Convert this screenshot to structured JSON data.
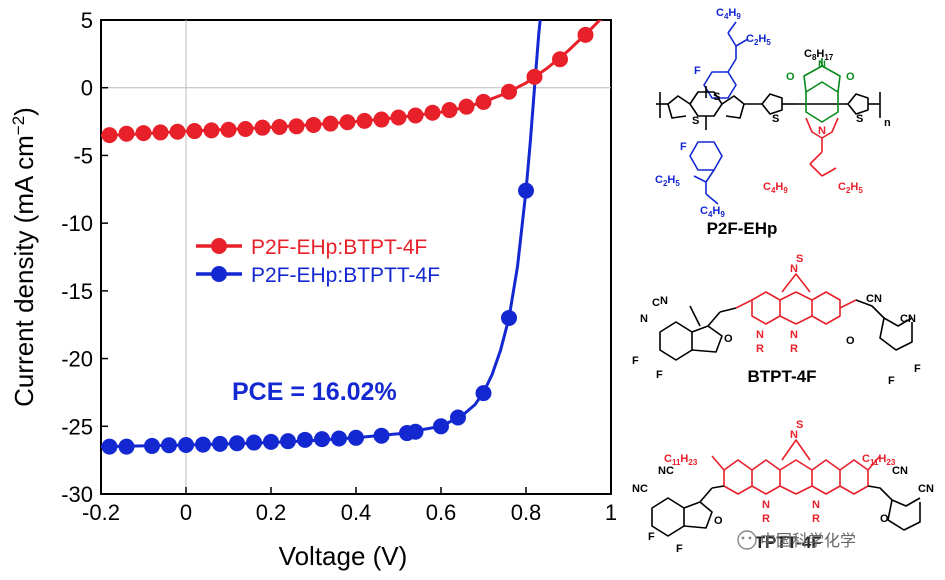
{
  "chart_data": {
    "type": "line",
    "title": "",
    "xlabel": "Voltage (V)",
    "ylabel": "Current density (mA cm",
    "ylabel_sup": "−2",
    "ylabel_close": ")",
    "xlim": [
      -0.2,
      1.0
    ],
    "ylim": [
      -30,
      5
    ],
    "x_ticks": [
      -0.2,
      0,
      0.2,
      0.4,
      0.6,
      0.8,
      1.0
    ],
    "x_tick_labels": [
      "-0.2",
      "0",
      "0.2",
      "0.4",
      "0.6",
      "0.8",
      "1"
    ],
    "y_ticks": [
      5,
      0,
      -5,
      -10,
      -15,
      -20,
      -25,
      -30
    ],
    "y_tick_labels": [
      "5",
      "0",
      "-5",
      "-10",
      "-15",
      "-20",
      "-25",
      "-30"
    ],
    "legend_position": "center-left",
    "series": [
      {
        "name": "P2F-EHp:BTPT-4F",
        "color": "#e8202a",
        "curve": [
          [
            -0.2,
            -3.55
          ],
          [
            -0.1,
            -3.4
          ],
          [
            0.0,
            -3.22
          ],
          [
            0.1,
            -3.08
          ],
          [
            0.2,
            -2.92
          ],
          [
            0.3,
            -2.72
          ],
          [
            0.4,
            -2.5
          ],
          [
            0.5,
            -2.2
          ],
          [
            0.6,
            -1.8
          ],
          [
            0.65,
            -1.5
          ],
          [
            0.7,
            -1.05
          ],
          [
            0.75,
            -0.45
          ],
          [
            0.8,
            0.35
          ],
          [
            0.85,
            1.45
          ],
          [
            0.9,
            2.75
          ],
          [
            0.95,
            4.25
          ],
          [
            0.98,
            5.2
          ]
        ],
        "markers": [
          [
            -0.18,
            -3.5
          ],
          [
            -0.14,
            -3.4
          ],
          [
            -0.1,
            -3.35
          ],
          [
            -0.06,
            -3.3
          ],
          [
            -0.02,
            -3.25
          ],
          [
            0.02,
            -3.2
          ],
          [
            0.06,
            -3.15
          ],
          [
            0.1,
            -3.1
          ],
          [
            0.14,
            -3.05
          ],
          [
            0.18,
            -2.95
          ],
          [
            0.22,
            -2.9
          ],
          [
            0.26,
            -2.85
          ],
          [
            0.3,
            -2.75
          ],
          [
            0.34,
            -2.65
          ],
          [
            0.38,
            -2.55
          ],
          [
            0.42,
            -2.45
          ],
          [
            0.46,
            -2.35
          ],
          [
            0.5,
            -2.2
          ],
          [
            0.54,
            -2.05
          ],
          [
            0.58,
            -1.85
          ],
          [
            0.62,
            -1.65
          ],
          [
            0.66,
            -1.4
          ],
          [
            0.7,
            -1.05
          ],
          [
            0.76,
            -0.3
          ],
          [
            0.82,
            0.8
          ],
          [
            0.88,
            2.1
          ],
          [
            0.94,
            3.9
          ]
        ]
      },
      {
        "name": "P2F-EHp:BTPTT-4F",
        "color": "#1428d2",
        "curve": [
          [
            -0.2,
            -26.5
          ],
          [
            -0.1,
            -26.45
          ],
          [
            0.0,
            -26.38
          ],
          [
            0.1,
            -26.3
          ],
          [
            0.2,
            -26.2
          ],
          [
            0.3,
            -26.05
          ],
          [
            0.4,
            -25.85
          ],
          [
            0.5,
            -25.55
          ],
          [
            0.6,
            -25.0
          ],
          [
            0.65,
            -24.2
          ],
          [
            0.68,
            -23.4
          ],
          [
            0.7,
            -22.5
          ],
          [
            0.72,
            -21.2
          ],
          [
            0.74,
            -19.4
          ],
          [
            0.76,
            -17.0
          ],
          [
            0.78,
            -13.2
          ],
          [
            0.8,
            -7.6
          ],
          [
            0.81,
            -4.0
          ],
          [
            0.82,
            0.0
          ],
          [
            0.83,
            4.0
          ],
          [
            0.835,
            5.5
          ]
        ],
        "markers": [
          [
            -0.18,
            -26.5
          ],
          [
            -0.14,
            -26.5
          ],
          [
            -0.08,
            -26.45
          ],
          [
            -0.04,
            -26.4
          ],
          [
            0.0,
            -26.38
          ],
          [
            0.04,
            -26.35
          ],
          [
            0.08,
            -26.3
          ],
          [
            0.12,
            -26.25
          ],
          [
            0.16,
            -26.2
          ],
          [
            0.2,
            -26.15
          ],
          [
            0.24,
            -26.1
          ],
          [
            0.28,
            -26.0
          ],
          [
            0.32,
            -25.95
          ],
          [
            0.36,
            -25.9
          ],
          [
            0.4,
            -25.85
          ],
          [
            0.46,
            -25.7
          ],
          [
            0.52,
            -25.5
          ],
          [
            0.54,
            -25.4
          ],
          [
            0.6,
            -25.0
          ],
          [
            0.64,
            -24.35
          ],
          [
            0.7,
            -22.55
          ],
          [
            0.76,
            -17.0
          ],
          [
            0.8,
            -7.6
          ]
        ]
      }
    ],
    "annotation": "PCE = 16.02%",
    "annotation_color": "#1428d2"
  },
  "molecules": {
    "polymer": {
      "name": "P2F-EHp",
      "blue_labels": [
        "C4H9",
        "C2H5",
        "F",
        "F",
        "C2H5",
        "C4H9"
      ],
      "green_label": "C8H17",
      "red_labels": [
        "C4H9",
        "C2H5"
      ],
      "repeat": "n"
    },
    "acceptor1": {
      "name": "BTPT-4F"
    },
    "acceptor2": {
      "name": "BTPTT-4F",
      "side_label": "C11H23"
    }
  },
  "watermark": "中国科学化学"
}
